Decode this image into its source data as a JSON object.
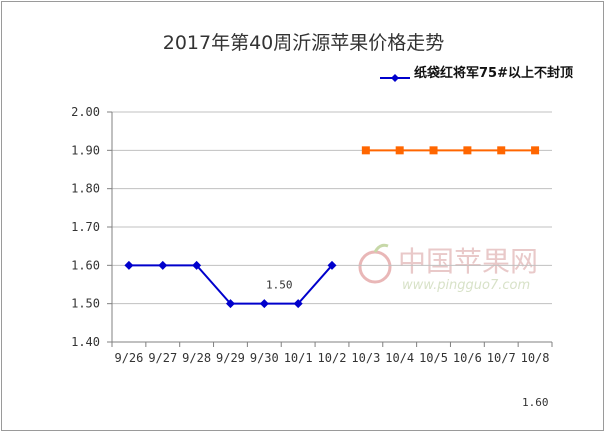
{
  "chart_data": {
    "type": "line",
    "title": "2017年第40周沂源苹果价格走势",
    "xlabel": "",
    "ylabel": "",
    "categories": [
      "9/26",
      "9/27",
      "9/28",
      "9/29",
      "9/30",
      "10/1",
      "10/2",
      "10/3",
      "10/4",
      "10/5",
      "10/6",
      "10/7",
      "10/8"
    ],
    "ylim": [
      1.4,
      2.0
    ],
    "yticks": [
      "1.40",
      "1.50",
      "1.60",
      "1.70",
      "1.80",
      "1.90",
      "2.00"
    ],
    "grid": true,
    "legend_position": "top-right",
    "series": [
      {
        "name": "纸袋红将军75#以上不封顶",
        "color": "#0000cc",
        "marker": "diamond",
        "values": [
          1.6,
          1.6,
          1.6,
          1.5,
          1.5,
          1.5,
          1.6,
          null,
          null,
          null,
          null,
          null,
          null
        ]
      },
      {
        "color": "#ff6600",
        "marker": "square",
        "values": [
          null,
          null,
          null,
          null,
          null,
          null,
          null,
          1.9,
          1.9,
          1.9,
          1.9,
          1.9,
          1.9
        ]
      }
    ],
    "annotations": [
      {
        "text": "1.50",
        "x": "9/30",
        "y": 1.5
      },
      {
        "text": "1.60",
        "note": "bottom-right"
      }
    ]
  },
  "watermark": {
    "text_cn": "中国苹果网",
    "url": "www.pingguo7.com"
  }
}
